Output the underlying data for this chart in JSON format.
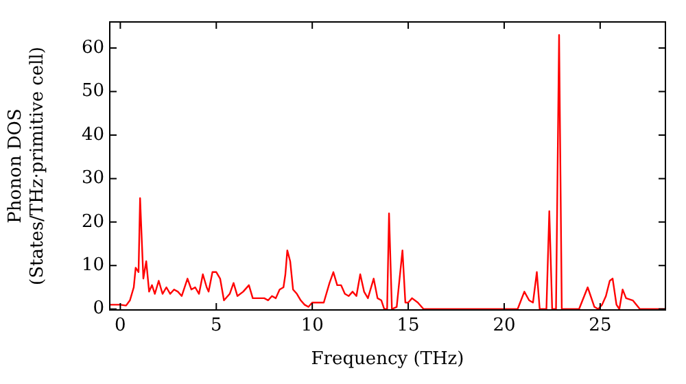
{
  "chart_data": {
    "type": "line",
    "xlabel": "Frequency (THz)",
    "ylabel": "Phonon DOS\n(States/THz·primitive cell)",
    "xlim": [
      -0.55,
      28.4
    ],
    "ylim": [
      -0.2,
      66
    ],
    "xticks": [
      0,
      5,
      10,
      15,
      20,
      25
    ],
    "yticks": [
      0,
      10,
      20,
      30,
      40,
      50,
      60
    ],
    "grid": false,
    "legend": false,
    "marker": "none",
    "line_style": "solid",
    "series": [
      {
        "color": "#ff0000",
        "x": [
          -0.55,
          0,
          0.3,
          0.5,
          0.7,
          0.8,
          0.95,
          1.03,
          1.2,
          1.35,
          1.5,
          1.65,
          1.8,
          2.0,
          2.2,
          2.4,
          2.6,
          2.8,
          3.0,
          3.2,
          3.5,
          3.7,
          3.9,
          4.1,
          4.3,
          4.5,
          4.6,
          4.8,
          5.0,
          5.2,
          5.4,
          5.7,
          5.9,
          6.1,
          6.4,
          6.7,
          6.9,
          7.2,
          7.5,
          7.7,
          7.9,
          8.1,
          8.3,
          8.5,
          8.6,
          8.7,
          8.85,
          9.0,
          9.2,
          9.4,
          9.6,
          9.8,
          10.0,
          10.2,
          10.6,
          10.9,
          11.1,
          11.3,
          11.5,
          11.7,
          11.9,
          12.1,
          12.3,
          12.5,
          12.7,
          12.9,
          13.2,
          13.4,
          13.6,
          13.75,
          13.9,
          14.0,
          14.15,
          14.4,
          14.7,
          14.85,
          15.0,
          15.2,
          15.5,
          15.8,
          20.7,
          21.05,
          21.3,
          21.5,
          21.7,
          21.85,
          22.2,
          22.35,
          22.5,
          22.7,
          22.86,
          23.0,
          23.9,
          24.35,
          24.7,
          24.9,
          25.1,
          25.3,
          25.5,
          25.65,
          25.85,
          26.0,
          26.17,
          26.35,
          26.7,
          27.07,
          28.4
        ],
        "values": [
          1,
          1,
          0.8,
          2,
          5,
          9.5,
          8.5,
          25.5,
          7,
          11,
          4,
          5.5,
          3.5,
          6.5,
          3.5,
          5,
          3.5,
          4.5,
          4,
          3,
          7,
          4.5,
          5,
          3.5,
          8,
          5,
          4,
          8.5,
          8.5,
          7,
          2,
          3.5,
          6,
          3,
          4,
          5.5,
          2.5,
          2.5,
          2.5,
          2,
          3,
          2.5,
          4.5,
          5,
          8,
          13.5,
          11,
          4.5,
          3.5,
          2,
          1,
          0.5,
          1.5,
          1.5,
          1.5,
          6,
          8.5,
          5.5,
          5.5,
          3.5,
          3,
          4,
          3,
          8,
          4,
          2.5,
          7,
          2.5,
          2,
          0,
          0,
          22,
          0,
          0.5,
          13.5,
          1.5,
          1.5,
          2.5,
          1.5,
          0,
          0,
          4,
          2,
          1.5,
          8.5,
          0,
          0,
          22.5,
          0,
          0,
          63,
          0,
          0,
          5,
          0.5,
          0,
          1,
          3,
          6.5,
          7,
          1,
          0,
          4.5,
          2.5,
          2,
          0,
          0
        ]
      }
    ]
  }
}
